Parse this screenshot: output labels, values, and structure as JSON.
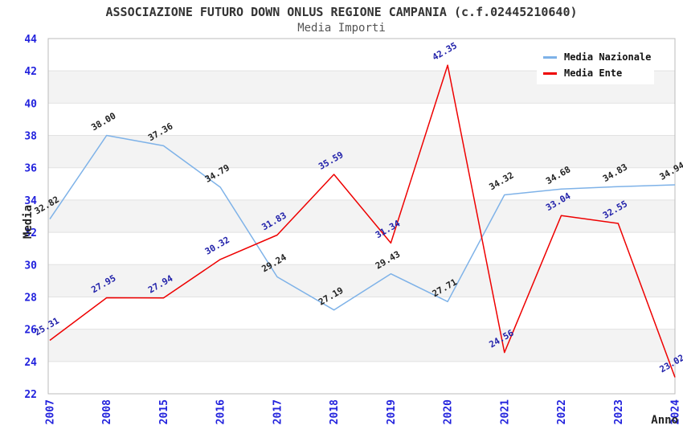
{
  "chart_data": {
    "type": "line",
    "title": "ASSOCIAZIONE FUTURO DOWN ONLUS REGIONE CAMPANIA (c.f.02445210640)",
    "subtitle": "Media Importi",
    "xlabel": "Anno",
    "ylabel": "Media",
    "categories": [
      "2007",
      "2008",
      "2015",
      "2016",
      "2017",
      "2018",
      "2019",
      "2020",
      "2021",
      "2022",
      "2023",
      "2024"
    ],
    "ylim": [
      22,
      44
    ],
    "ytick_step": 2,
    "grid": "horizontal-alternating-bands",
    "legend_position": "top-right-inside",
    "series": [
      {
        "name": "Media Nazionale",
        "color": "#7EB2E8",
        "label_color": "#222222",
        "values": [
          32.82,
          38.0,
          37.36,
          34.79,
          29.24,
          27.19,
          29.43,
          27.71,
          34.32,
          34.68,
          34.83,
          34.94
        ]
      },
      {
        "name": "Media Ente",
        "color": "#EE0000",
        "label_color": "#2222AA",
        "values": [
          25.31,
          27.95,
          27.94,
          30.32,
          31.83,
          35.59,
          31.34,
          42.35,
          24.56,
          33.04,
          32.55,
          23.02
        ]
      }
    ]
  },
  "colors": {
    "axis_tick": "#2222DD",
    "title": "#333333",
    "subtitle": "#545454",
    "band": "#f3f3f3",
    "grid_line": "#e2e2e2",
    "plot_border": "#bbbbbb",
    "background": "#ffffff"
  }
}
